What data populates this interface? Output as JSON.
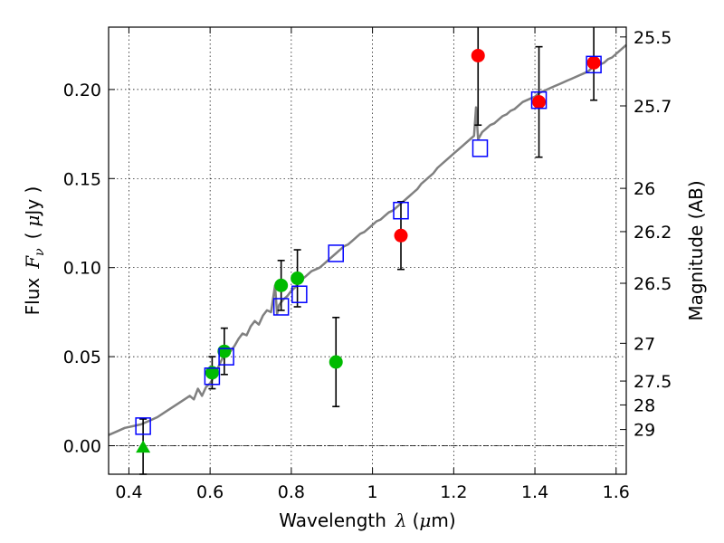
{
  "chart_data": {
    "type": "scatter",
    "xlabel": {
      "prefix": "Wavelength",
      "symbol": "λ",
      "unit_open": "(",
      "unit_mu": "μ",
      "unit_rest": "m)"
    },
    "ylabel": {
      "prefix": "Flux",
      "symbol": "F",
      "subscript": "ν",
      "unit_open": "(",
      "unit_mu": "μ",
      "unit_rest": "Jy )"
    },
    "y2label": "Magnitude (AB)",
    "xlim": [
      0.35,
      1.625
    ],
    "ylim": [
      -0.016,
      0.235
    ],
    "grid": true,
    "x_ticks": [
      {
        "value": 0.4,
        "label": "0.4"
      },
      {
        "value": 0.6,
        "label": "0.6"
      },
      {
        "value": 0.8,
        "label": "0.8"
      },
      {
        "value": 1.0,
        "label": "1"
      },
      {
        "value": 1.2,
        "label": "1.2"
      },
      {
        "value": 1.4,
        "label": "1.4"
      },
      {
        "value": 1.6,
        "label": "1.6"
      }
    ],
    "y_ticks": [
      {
        "value": 0.0,
        "label": "0.00"
      },
      {
        "value": 0.05,
        "label": "0.05"
      },
      {
        "value": 0.1,
        "label": "0.10"
      },
      {
        "value": 0.15,
        "label": "0.15"
      },
      {
        "value": 0.2,
        "label": "0.20"
      }
    ],
    "mag_ticks": [
      {
        "flux": 0.2295,
        "label": "25.5"
      },
      {
        "flux": 0.1908,
        "label": "25.7"
      },
      {
        "flux": 0.1445,
        "label": "26"
      },
      {
        "flux": 0.1202,
        "label": "26.2"
      },
      {
        "flux": 0.0912,
        "label": "26.5"
      },
      {
        "flux": 0.0575,
        "label": "27"
      },
      {
        "flux": 0.0363,
        "label": "27.5"
      },
      {
        "flux": 0.0229,
        "label": "28"
      },
      {
        "flux": 0.0091,
        "label": "29"
      }
    ],
    "template_spectrum": {
      "name": "",
      "color": "#808080",
      "points": [
        [
          0.35,
          0.006
        ],
        [
          0.37,
          0.008
        ],
        [
          0.39,
          0.01
        ],
        [
          0.41,
          0.011
        ],
        [
          0.43,
          0.012
        ],
        [
          0.45,
          0.014
        ],
        [
          0.47,
          0.016
        ],
        [
          0.49,
          0.019
        ],
        [
          0.51,
          0.022
        ],
        [
          0.53,
          0.025
        ],
        [
          0.55,
          0.028
        ],
        [
          0.56,
          0.026
        ],
        [
          0.57,
          0.032
        ],
        [
          0.58,
          0.028
        ],
        [
          0.59,
          0.033
        ],
        [
          0.6,
          0.035
        ],
        [
          0.61,
          0.039
        ],
        [
          0.62,
          0.044
        ],
        [
          0.63,
          0.049
        ],
        [
          0.64,
          0.051
        ],
        [
          0.65,
          0.053
        ],
        [
          0.66,
          0.056
        ],
        [
          0.67,
          0.06
        ],
        [
          0.68,
          0.063
        ],
        [
          0.69,
          0.062
        ],
        [
          0.7,
          0.067
        ],
        [
          0.71,
          0.07
        ],
        [
          0.72,
          0.068
        ],
        [
          0.73,
          0.073
        ],
        [
          0.74,
          0.076
        ],
        [
          0.75,
          0.075
        ],
        [
          0.76,
          0.09
        ],
        [
          0.765,
          0.074
        ],
        [
          0.77,
          0.079
        ],
        [
          0.78,
          0.082
        ],
        [
          0.79,
          0.084
        ],
        [
          0.8,
          0.087
        ],
        [
          0.81,
          0.089
        ],
        [
          0.82,
          0.092
        ],
        [
          0.83,
          0.094
        ],
        [
          0.84,
          0.096
        ],
        [
          0.85,
          0.098
        ],
        [
          0.86,
          0.099
        ],
        [
          0.87,
          0.1
        ],
        [
          0.88,
          0.102
        ],
        [
          0.89,
          0.104
        ],
        [
          0.9,
          0.106
        ],
        [
          0.91,
          0.108
        ],
        [
          0.92,
          0.11
        ],
        [
          0.93,
          0.112
        ],
        [
          0.94,
          0.113
        ],
        [
          0.95,
          0.115
        ],
        [
          0.96,
          0.117
        ],
        [
          0.97,
          0.119
        ],
        [
          0.98,
          0.12
        ],
        [
          0.99,
          0.122
        ],
        [
          1.0,
          0.124
        ],
        [
          1.01,
          0.126
        ],
        [
          1.02,
          0.127
        ],
        [
          1.03,
          0.129
        ],
        [
          1.04,
          0.131
        ],
        [
          1.05,
          0.132
        ],
        [
          1.06,
          0.134
        ],
        [
          1.07,
          0.136
        ],
        [
          1.08,
          0.138
        ],
        [
          1.09,
          0.14
        ],
        [
          1.1,
          0.142
        ],
        [
          1.11,
          0.144
        ],
        [
          1.12,
          0.147
        ],
        [
          1.13,
          0.149
        ],
        [
          1.14,
          0.151
        ],
        [
          1.15,
          0.153
        ],
        [
          1.16,
          0.156
        ],
        [
          1.17,
          0.158
        ],
        [
          1.18,
          0.16
        ],
        [
          1.19,
          0.162
        ],
        [
          1.2,
          0.164
        ],
        [
          1.21,
          0.166
        ],
        [
          1.22,
          0.168
        ],
        [
          1.23,
          0.17
        ],
        [
          1.24,
          0.172
        ],
        [
          1.25,
          0.174
        ],
        [
          1.255,
          0.19
        ],
        [
          1.26,
          0.172
        ],
        [
          1.27,
          0.176
        ],
        [
          1.28,
          0.178
        ],
        [
          1.29,
          0.18
        ],
        [
          1.3,
          0.181
        ],
        [
          1.31,
          0.183
        ],
        [
          1.32,
          0.185
        ],
        [
          1.33,
          0.186
        ],
        [
          1.34,
          0.188
        ],
        [
          1.35,
          0.189
        ],
        [
          1.36,
          0.191
        ],
        [
          1.37,
          0.193
        ],
        [
          1.38,
          0.194
        ],
        [
          1.39,
          0.195
        ],
        [
          1.4,
          0.196
        ],
        [
          1.41,
          0.198
        ],
        [
          1.42,
          0.199
        ],
        [
          1.43,
          0.2
        ],
        [
          1.44,
          0.201
        ],
        [
          1.45,
          0.202
        ],
        [
          1.46,
          0.203
        ],
        [
          1.47,
          0.204
        ],
        [
          1.48,
          0.205
        ],
        [
          1.49,
          0.206
        ],
        [
          1.5,
          0.207
        ],
        [
          1.51,
          0.208
        ],
        [
          1.52,
          0.209
        ],
        [
          1.53,
          0.21
        ],
        [
          1.54,
          0.212
        ],
        [
          1.55,
          0.213
        ],
        [
          1.56,
          0.214
        ],
        [
          1.57,
          0.215
        ],
        [
          1.58,
          0.217
        ],
        [
          1.59,
          0.218
        ],
        [
          1.6,
          0.22
        ],
        [
          1.61,
          0.222
        ],
        [
          1.625,
          0.225
        ]
      ]
    },
    "series": [
      {
        "marker": "circle",
        "color": "#00bb00",
        "points": [
          {
            "x": 0.605,
            "y": 0.041,
            "err": 0.009
          },
          {
            "x": 0.635,
            "y": 0.053,
            "err": 0.013
          },
          {
            "x": 0.775,
            "y": 0.09,
            "err": 0.014
          },
          {
            "x": 0.815,
            "y": 0.094,
            "err": 0.016
          },
          {
            "x": 0.91,
            "y": 0.047,
            "err": 0.025
          }
        ]
      },
      {
        "marker": "triangle",
        "color": "#00bb00",
        "points": [
          {
            "x": 0.435,
            "y": -0.001,
            "err": 0.016
          }
        ]
      },
      {
        "marker": "circle",
        "color": "#ff0000",
        "points": [
          {
            "x": 1.07,
            "y": 0.118,
            "err": 0.019
          },
          {
            "x": 1.26,
            "y": 0.219,
            "err": 0.039
          },
          {
            "x": 1.41,
            "y": 0.193,
            "err": 0.031
          },
          {
            "x": 1.545,
            "y": 0.215,
            "err": 0.021
          }
        ]
      },
      {
        "marker": "open-square",
        "color": "#0000ff",
        "points": [
          {
            "x": 0.435,
            "y": 0.011
          },
          {
            "x": 0.605,
            "y": 0.039
          },
          {
            "x": 0.64,
            "y": 0.05
          },
          {
            "x": 0.775,
            "y": 0.078
          },
          {
            "x": 0.82,
            "y": 0.085
          },
          {
            "x": 0.91,
            "y": 0.108
          },
          {
            "x": 1.07,
            "y": 0.132
          },
          {
            "x": 1.265,
            "y": 0.167
          },
          {
            "x": 1.41,
            "y": 0.194
          },
          {
            "x": 1.545,
            "y": 0.214
          }
        ]
      }
    ],
    "colors": {
      "errorbar": "#000000",
      "grid": "#000000",
      "reference_line": "#000000"
    }
  }
}
